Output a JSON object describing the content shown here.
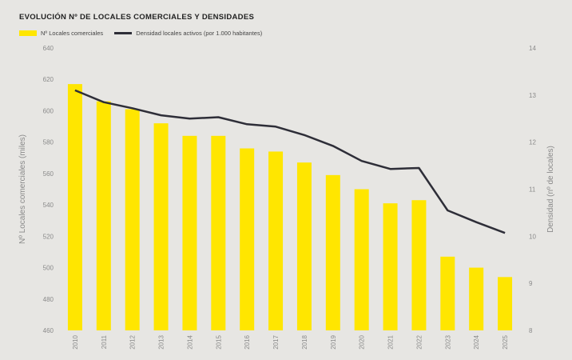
{
  "title": "EVOLUCIÓN Nº DE LOCALES COMERCIALES Y DENSIDADES",
  "legend": {
    "bar_label": "Nº Locales comerciales",
    "line_label": "Densidad locales activos (por 1.000 habitantes)"
  },
  "colors": {
    "background": "#e7e6e3",
    "bar": "#ffe600",
    "line": "#2e2e38",
    "text": "#8a8a8a"
  },
  "chart_data": {
    "type": "bar",
    "categories": [
      "2010",
      "2011",
      "2012",
      "2013",
      "2014",
      "2015",
      "2016",
      "2017",
      "2018",
      "2019",
      "2020",
      "2021",
      "2022",
      "2023",
      "2024",
      "2025"
    ],
    "series": [
      {
        "name": "Nº Locales comerciales",
        "type": "bar",
        "axis": "left",
        "values": [
          617,
          606,
          601,
          592,
          584,
          584,
          576,
          574,
          567,
          559,
          550,
          541,
          543,
          507,
          500,
          494
        ]
      },
      {
        "name": "Densidad locales activos (por 1.000 habitantes)",
        "type": "line",
        "axis": "right",
        "values": [
          13.1,
          12.85,
          12.72,
          12.57,
          12.5,
          12.53,
          12.38,
          12.33,
          12.15,
          11.92,
          11.6,
          11.43,
          11.45,
          10.55,
          10.3,
          10.07
        ]
      }
    ],
    "y_left": {
      "label": "Nº Locales comerciales (miles)",
      "ticks": [
        "640",
        "620",
        "600",
        "580",
        "560",
        "540",
        "520",
        "500",
        "480",
        "460"
      ],
      "ylim": [
        460,
        640
      ]
    },
    "y_right": {
      "label": "Densidad (nº de locales)",
      "ticks": [
        "14",
        "13",
        "12",
        "11",
        "10",
        "9",
        "8"
      ],
      "ylim": [
        8,
        14
      ]
    },
    "grid": false,
    "legend_position": "top-left"
  }
}
